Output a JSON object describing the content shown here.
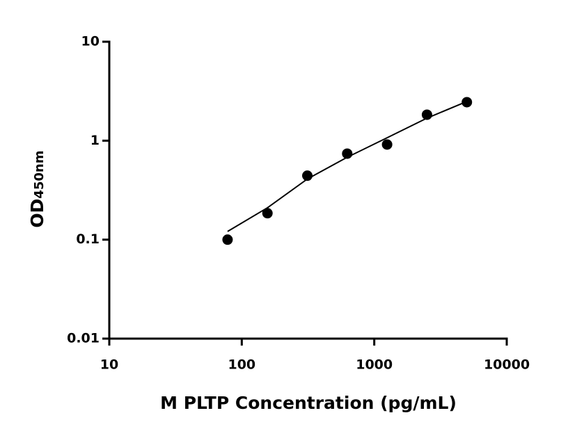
{
  "chart_data": {
    "type": "scatter",
    "x_label": "M PLTP Concentration (pg/mL)",
    "y_label": "OD",
    "y_label_sub": "450nm",
    "x": [
      78.125,
      156.25,
      312.5,
      625,
      1250,
      2500,
      5000
    ],
    "values": [
      0.1,
      0.185,
      0.443,
      0.74,
      0.915,
      1.83,
      2.45
    ],
    "color": "#000000",
    "curve": {
      "x": [
        78.125,
        156.25,
        312.5,
        625,
        1250,
        2500,
        5000
      ],
      "y": [
        0.121,
        0.21,
        0.41,
        0.68,
        1.07,
        1.69,
        2.49
      ]
    },
    "x_log": true,
    "y_log": true,
    "xlim": [
      10,
      10000
    ],
    "xticks": [
      10,
      100,
      1000,
      10000
    ],
    "ylim": [
      0.01,
      10
    ],
    "yticks": [
      0.01,
      0.1,
      1,
      10
    ]
  }
}
